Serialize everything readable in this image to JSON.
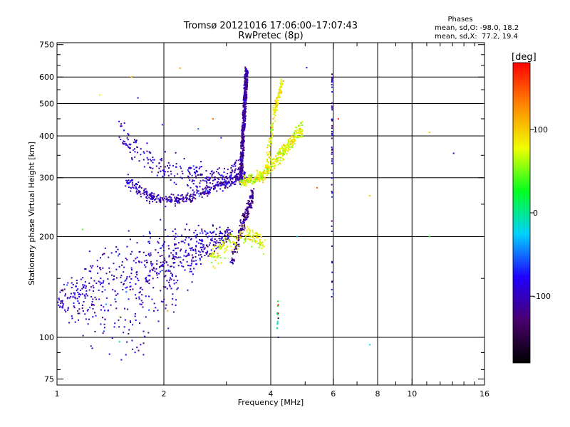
{
  "chart_data": {
    "type": "scatter",
    "title_line1": "Tromsø 20121016 17:06:00–17:07:43",
    "title_line2": "RwPretec (8p)",
    "xlabel": "Frequency [MHz]",
    "ylabel": "Stationary phase Virtual Height [km]",
    "x_scale": "log",
    "y_scale": "log",
    "xlim": [
      1,
      16
    ],
    "ylim": [
      72,
      760
    ],
    "x_ticks": [
      1,
      2,
      4,
      6,
      8,
      10,
      16
    ],
    "x_minor_ticks": [
      3,
      5,
      7,
      9,
      11,
      12,
      13,
      14,
      15
    ],
    "y_ticks": [
      75,
      100,
      200,
      300,
      400,
      500,
      600,
      750
    ],
    "y_minor_ticks": [
      80,
      90,
      150,
      250,
      350,
      450,
      550,
      650,
      700
    ],
    "grid_x": [
      2,
      4,
      6,
      8,
      10
    ],
    "grid_y": [
      100,
      200,
      300,
      400,
      500,
      600
    ],
    "grid": true,
    "colorbar": {
      "unit": "[deg]",
      "range": [
        -180,
        180
      ],
      "ticks": [
        -100,
        0,
        100
      ],
      "tick_labels": [
        "-100",
        "0",
        "100"
      ],
      "stops": [
        "#000000",
        "#4a0070",
        "#2000ff",
        "#00d0ff",
        "#00ff20",
        "#f0ff00",
        "#ff8800",
        "#ff0000"
      ]
    },
    "stats": {
      "heading": "Phases",
      "line_o": "mean, sd,O: -98.0, 18.2",
      "line_x": "mean, sd,X:  77.2, 19.4"
    },
    "series": [
      {
        "key": "o_low",
        "trace": [
          [
            1.0,
            130
          ],
          [
            1.1,
            131
          ],
          [
            1.2,
            134
          ],
          [
            1.3,
            137
          ],
          [
            1.4,
            139
          ],
          [
            1.5,
            142
          ],
          [
            1.6,
            145
          ],
          [
            1.7,
            149
          ],
          [
            1.8,
            153
          ],
          [
            1.9,
            157
          ],
          [
            2.0,
            162
          ],
          [
            2.1,
            167
          ],
          [
            2.2,
            172
          ],
          [
            2.35,
            178
          ],
          [
            2.5,
            184
          ],
          [
            2.7,
            191
          ],
          [
            2.9,
            199
          ],
          [
            3.1,
            206
          ]
        ],
        "spread": [
          [
            1.0,
            8
          ],
          [
            1.4,
            45
          ],
          [
            1.7,
            55
          ],
          [
            2.0,
            40
          ],
          [
            2.5,
            25
          ],
          [
            3.1,
            10
          ]
        ],
        "n": 700,
        "phase": -98
      },
      {
        "key": "o_f_low",
        "trace": [
          [
            1.55,
            300
          ],
          [
            1.7,
            275
          ],
          [
            1.85,
            262
          ],
          [
            2.0,
            257
          ],
          [
            2.2,
            258
          ],
          [
            2.4,
            264
          ],
          [
            2.6,
            272
          ],
          [
            2.8,
            281
          ],
          [
            3.0,
            290
          ],
          [
            3.2,
            298
          ],
          [
            3.4,
            306
          ]
        ],
        "spread": [
          [
            1.55,
            15
          ],
          [
            2.0,
            8
          ],
          [
            3.4,
            10
          ]
        ],
        "n": 400,
        "phase": -102
      },
      {
        "key": "o_f_upper",
        "trace": [
          [
            1.5,
            420
          ],
          [
            1.6,
            380
          ],
          [
            1.75,
            350
          ],
          [
            1.9,
            330
          ],
          [
            2.1,
            318
          ],
          [
            2.3,
            310
          ],
          [
            2.5,
            305
          ],
          [
            2.7,
            303
          ],
          [
            2.9,
            304
          ],
          [
            3.1,
            310
          ],
          [
            3.3,
            330
          ]
        ],
        "spread": [
          [
            1.5,
            30
          ],
          [
            2.5,
            25
          ],
          [
            3.3,
            20
          ]
        ],
        "n": 260,
        "phase": -100
      },
      {
        "key": "o_column_upper",
        "trace": [
          [
            3.3,
            300
          ],
          [
            3.32,
            350
          ],
          [
            3.35,
            420
          ],
          [
            3.38,
            500
          ],
          [
            3.4,
            560
          ],
          [
            3.42,
            630
          ]
        ],
        "spread": [
          [
            3.3,
            15
          ],
          [
            3.42,
            10
          ]
        ],
        "n": 450,
        "phase": -110
      },
      {
        "key": "o_column_lower",
        "trace": [
          [
            3.1,
            170
          ],
          [
            3.2,
            190
          ],
          [
            3.3,
            210
          ],
          [
            3.4,
            230
          ],
          [
            3.5,
            250
          ],
          [
            3.55,
            270
          ]
        ],
        "spread": [
          [
            3.1,
            10
          ],
          [
            3.55,
            10
          ]
        ],
        "n": 200,
        "phase": -118
      },
      {
        "key": "x_low",
        "trace": [
          [
            2.7,
            170
          ],
          [
            2.8,
            178
          ],
          [
            2.95,
            186
          ],
          [
            3.1,
            192
          ],
          [
            3.3,
            200
          ],
          [
            3.5,
            205
          ],
          [
            3.7,
            195
          ],
          [
            3.85,
            185
          ]
        ],
        "spread": [
          [
            2.7,
            15
          ],
          [
            3.85,
            10
          ]
        ],
        "n": 170,
        "phase": 80
      },
      {
        "key": "x_f",
        "trace": [
          [
            3.3,
            290
          ],
          [
            3.5,
            295
          ],
          [
            3.7,
            300
          ],
          [
            3.9,
            315
          ],
          [
            4.1,
            335
          ],
          [
            4.3,
            355
          ],
          [
            4.5,
            375
          ],
          [
            4.7,
            400
          ],
          [
            4.9,
            425
          ]
        ],
        "spread": [
          [
            3.3,
            8
          ],
          [
            4.9,
            20
          ]
        ],
        "n": 420,
        "phase": 78
      },
      {
        "key": "x_upper",
        "trace": [
          [
            3.9,
            330
          ],
          [
            4.0,
            400
          ],
          [
            4.1,
            470
          ],
          [
            4.2,
            530
          ],
          [
            4.3,
            580
          ]
        ],
        "spread": [
          [
            3.9,
            20
          ],
          [
            4.3,
            20
          ]
        ],
        "n": 130,
        "phase": 85
      },
      {
        "key": "line_6mhz",
        "trace": [
          [
            5.95,
            120
          ],
          [
            5.95,
            620
          ]
        ],
        "spread": [
          [
            5.95,
            1
          ]
        ],
        "n": 50,
        "phase": -95
      },
      {
        "key": "line_4mhz",
        "trace": [
          [
            4.18,
            100
          ],
          [
            4.18,
            135
          ]
        ],
        "spread": [
          [
            4.18,
            1
          ]
        ],
        "n": 10,
        "phase": 0
      }
    ],
    "outliers": [
      [
        1.62,
        600,
        100
      ],
      [
        1.32,
        530,
        80
      ],
      [
        1.69,
        520,
        -100
      ],
      [
        2.75,
        450,
        140
      ],
      [
        5.05,
        640,
        -110
      ],
      [
        6.2,
        450,
        175
      ],
      [
        5.4,
        280,
        150
      ],
      [
        7.6,
        265,
        105
      ],
      [
        11.2,
        410,
        100
      ],
      [
        13.1,
        355,
        -90
      ],
      [
        11.2,
        200,
        30
      ],
      [
        4.75,
        200,
        -30
      ],
      [
        1.18,
        210,
        40
      ],
      [
        1.28,
        104,
        -130
      ],
      [
        1.5,
        115,
        70
      ],
      [
        1.5,
        97,
        -5
      ],
      [
        7.6,
        95,
        -20
      ],
      [
        4.2,
        100,
        -130
      ],
      [
        4.2,
        114,
        -170
      ],
      [
        4.2,
        118,
        175
      ],
      [
        4.2,
        125,
        175
      ],
      [
        6.0,
        135,
        -60
      ],
      [
        2.05,
        120,
        110
      ],
      [
        2.22,
        638,
        120
      ],
      [
        2.9,
        395,
        -75
      ],
      [
        1.98,
        432,
        -80
      ],
      [
        2.5,
        420,
        -50
      ]
    ]
  }
}
